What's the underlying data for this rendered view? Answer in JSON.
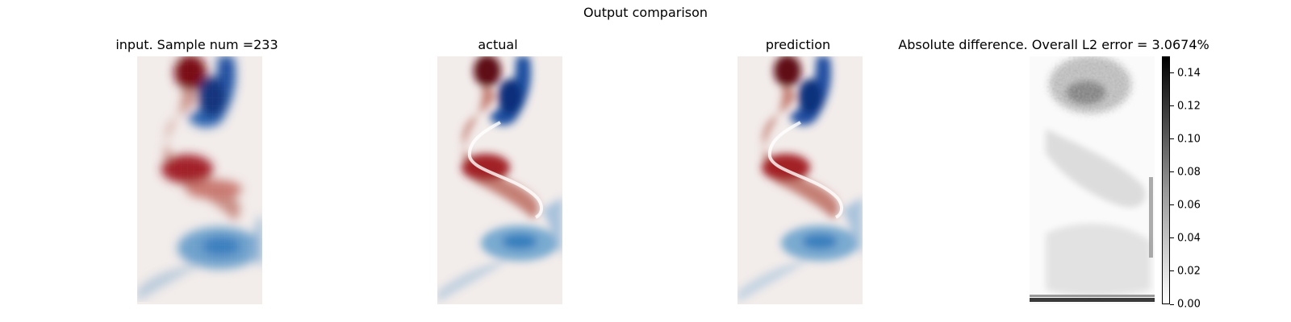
{
  "chart_data": [
    {
      "type": "heatmap",
      "title": "input. Sample num =233",
      "xlabel": "",
      "ylabel": "",
      "colormap": "diverging red-white-blue",
      "grid": false
    },
    {
      "type": "heatmap",
      "title": "actual",
      "xlabel": "",
      "ylabel": "",
      "colormap": "diverging red-white-blue",
      "grid": false
    },
    {
      "type": "heatmap",
      "title": "prediction",
      "xlabel": "",
      "ylabel": "",
      "colormap": "diverging red-white-blue",
      "grid": false
    },
    {
      "type": "heatmap",
      "title": "Absolute difference. Overall L2 error = 3.0674%",
      "xlabel": "",
      "ylabel": "",
      "colormap": "grayscale (white=0, black=max)",
      "colorbar": {
        "range": [
          0.0,
          0.15
        ],
        "ticks": [
          "0.00",
          "0.02",
          "0.04",
          "0.06",
          "0.08",
          "0.10",
          "0.12",
          "0.14"
        ],
        "tick_values": [
          0.0,
          0.02,
          0.04,
          0.06,
          0.08,
          0.1,
          0.12,
          0.14
        ],
        "placement": "right"
      },
      "grid": false
    }
  ],
  "figure": {
    "suptitle": "Output comparison"
  }
}
